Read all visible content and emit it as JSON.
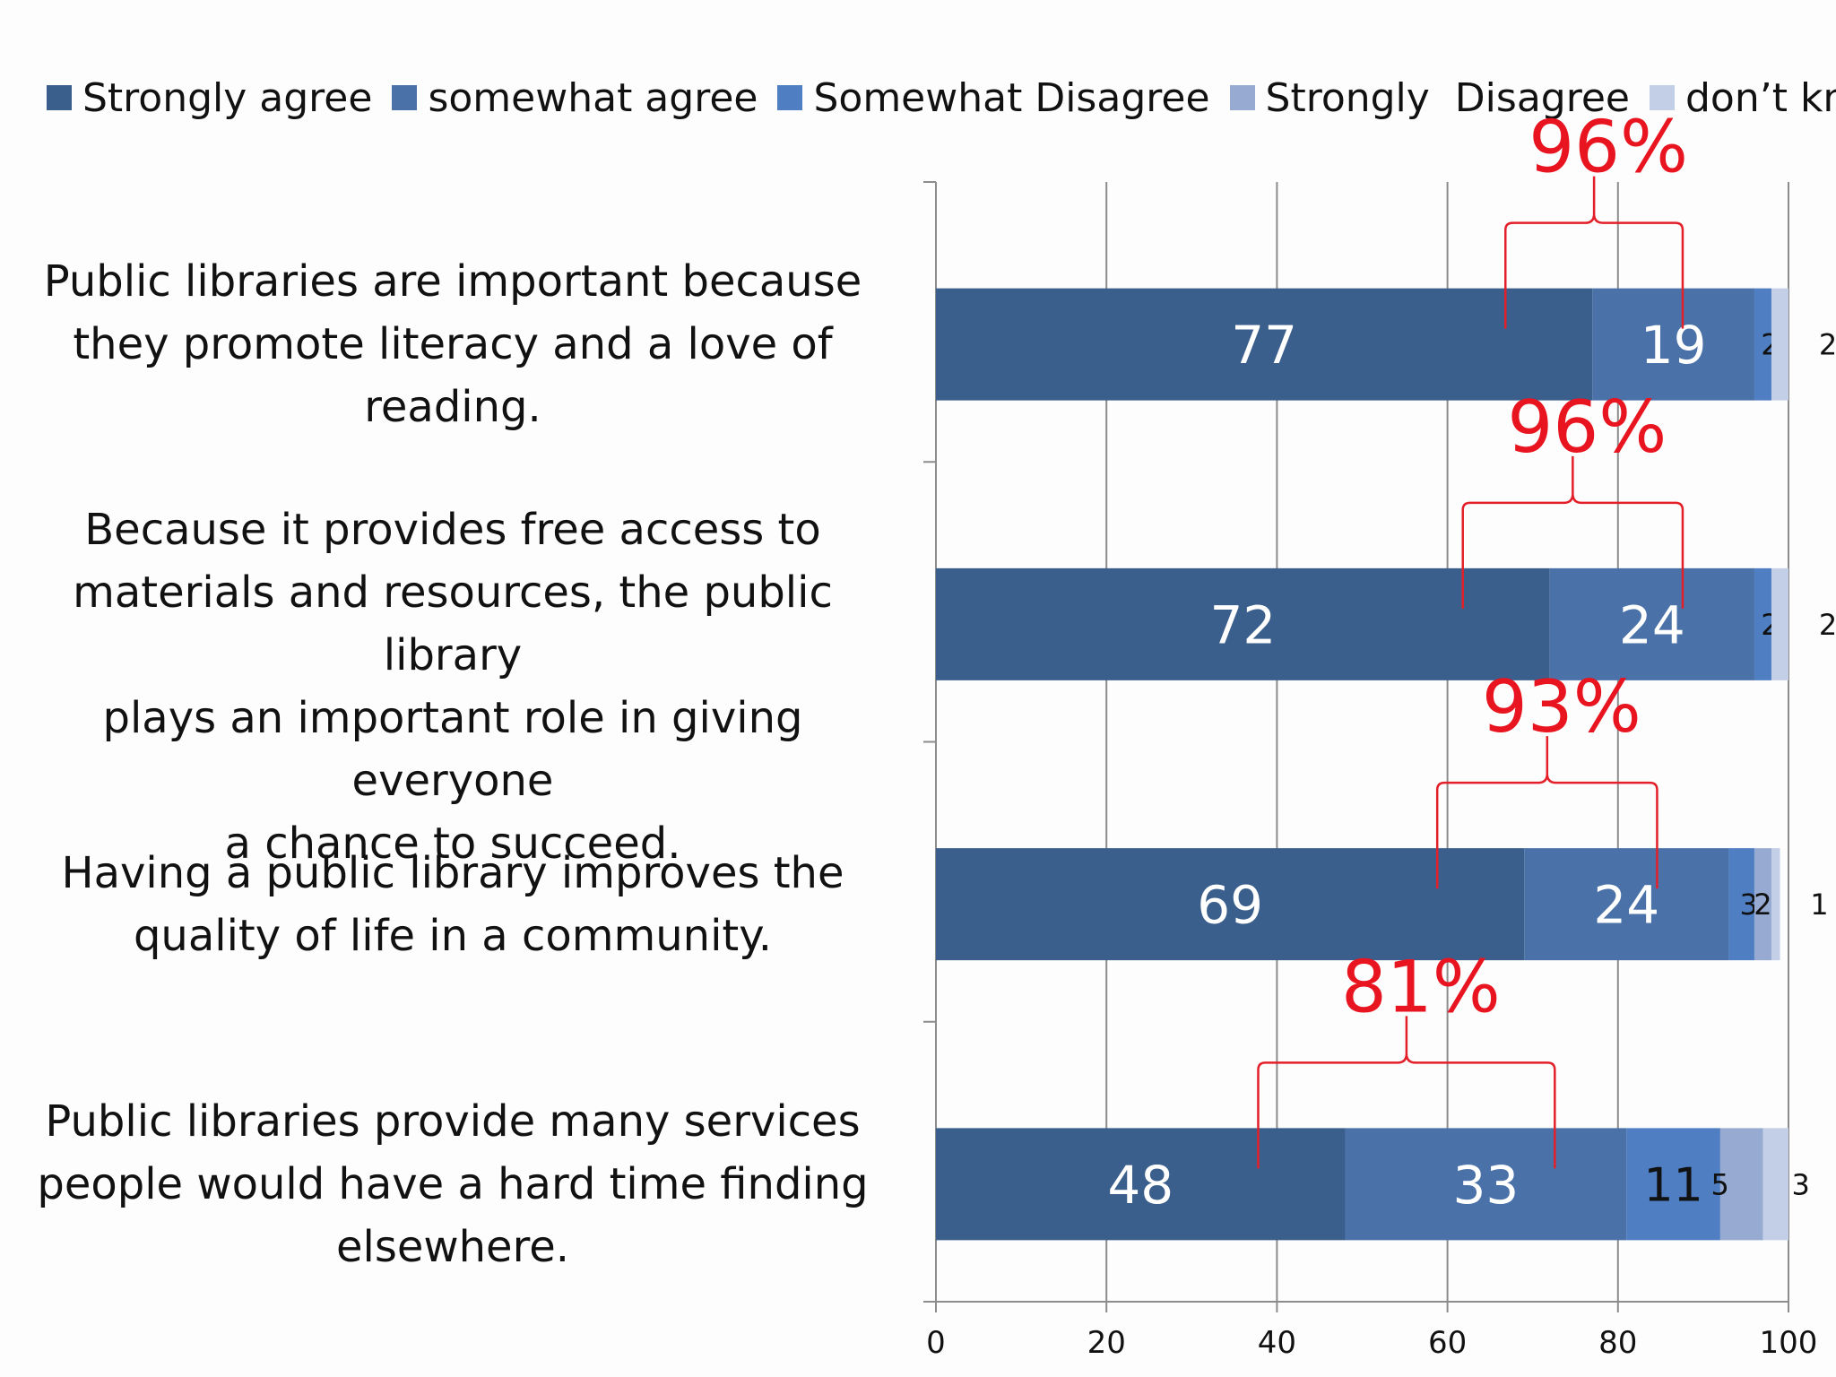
{
  "legend": [
    {
      "label": "Strongly agree",
      "color": "#3b5f8c"
    },
    {
      "label": "somewhat agree",
      "color": "#4a72a9"
    },
    {
      "label": "Somewhat Disagree",
      "color": "#4f7fc2"
    },
    {
      "label": "Strongly  Disagree",
      "color": "#97abd2"
    },
    {
      "label": "don’t know",
      "color": "#c3cfe6"
    }
  ],
  "chart_data": {
    "type": "bar",
    "orientation": "horizontal",
    "stacked": true,
    "categories": [
      "Public libraries are important because they promote literacy and a love of reading.",
      "Because it provides free access to materials and resources, the public library plays an important role in giving everyone a chance to succeed.",
      "Having a public library improves the quality of life in a community.",
      "Public libraries provide many services people would have a hard time finding elsewhere."
    ],
    "category_lines": [
      [
        "Public libraries are important because",
        "they promote literacy and a love of",
        "reading."
      ],
      [
        "Because it provides free access to",
        "materials and resources, the public library",
        "plays an important role in giving everyone",
        "a chance to succeed."
      ],
      [
        "Having a public library improves the",
        "quality of life in a community."
      ],
      [
        "Public libraries provide many services",
        "people would have a hard time finding",
        "elsewhere."
      ]
    ],
    "series": [
      {
        "name": "Strongly agree",
        "values": [
          77,
          72,
          69,
          48
        ]
      },
      {
        "name": "somewhat agree",
        "values": [
          19,
          24,
          24,
          33
        ]
      },
      {
        "name": "Somewhat Disagree",
        "values": [
          2,
          2,
          3,
          11
        ]
      },
      {
        "name": "Strongly  Disagree",
        "values": [
          0,
          0,
          2,
          5
        ]
      },
      {
        "name": "don’t know",
        "values": [
          2,
          2,
          1,
          3
        ]
      }
    ],
    "annotations": [
      "96%",
      "96%",
      "93%",
      "81%"
    ],
    "xlim": [
      0,
      100
    ],
    "xticks": [
      0,
      20,
      40,
      60,
      80,
      100
    ],
    "grid": true,
    "legend_position": "top"
  }
}
